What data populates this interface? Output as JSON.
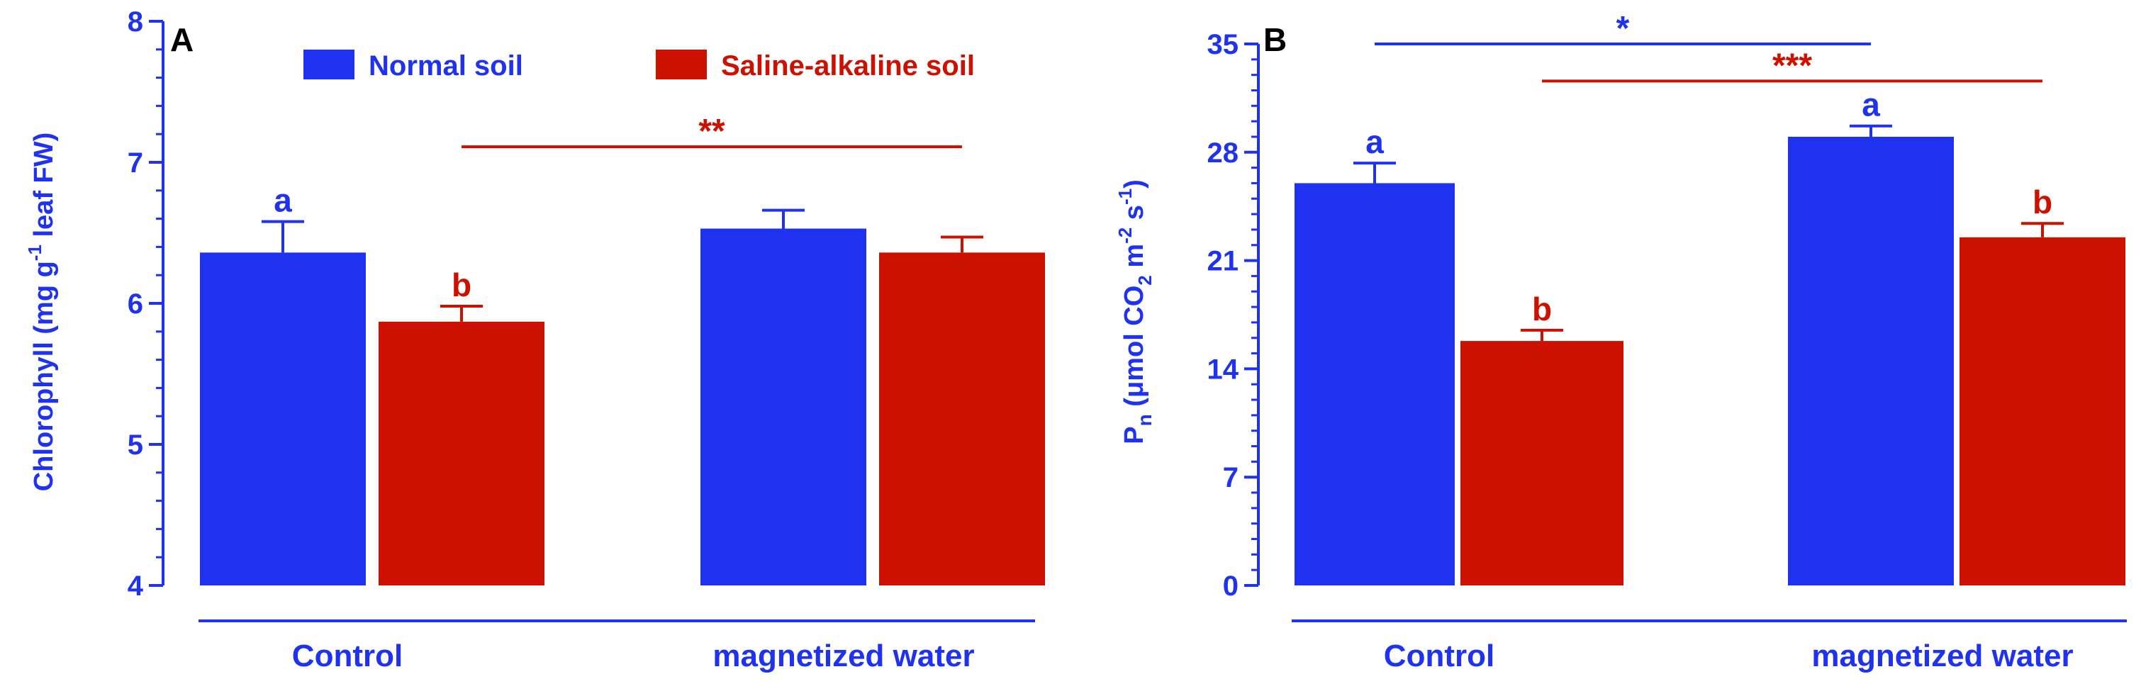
{
  "colors": {
    "normal": "#1e32f0",
    "saline": "#cc1100",
    "blue_text": "#1e32f0",
    "red_text": "#cc1100",
    "label_black": "#000000"
  },
  "legend": {
    "items": [
      "Normal soil",
      "Saline-alkaline soil"
    ]
  },
  "chart_data": [
    {
      "type": "bar",
      "panel_label": "A",
      "categories": [
        "Control",
        "magnetized water"
      ],
      "ylabel": "Chlorophyll (mg g-1 leaf FW)",
      "ylabel_parts": {
        "main": "Chlorophyll (mg g",
        "sup": "-1",
        "tail": " leaf FW)"
      },
      "ylim": [
        4,
        8
      ],
      "yticks": [
        "4",
        "5",
        "6",
        "7",
        "8"
      ],
      "minor_ticks_per_major": 5,
      "series": [
        {
          "name": "Normal soil",
          "values": [
            6.36,
            6.53
          ],
          "errors": [
            0.22,
            0.13
          ],
          "letters": [
            "a",
            ""
          ]
        },
        {
          "name": "Saline-alkaline soil",
          "values": [
            5.87,
            6.36
          ],
          "errors": [
            0.11,
            0.11
          ],
          "letters": [
            "b",
            ""
          ]
        }
      ],
      "significance": [
        {
          "label": "**",
          "y": 7.11,
          "from": [
            1,
            0
          ],
          "to": [
            1,
            1
          ],
          "series_color": "saline"
        }
      ]
    },
    {
      "type": "bar",
      "panel_label": "B",
      "categories": [
        "Control",
        "magnetized water"
      ],
      "ylabel": "Pn (μmol CO2 m-2 s-1)",
      "ylabel_parts": {
        "p": "P",
        "n": "n",
        "mid": " (μmol CO",
        "sub2": "2",
        "m": " m",
        "supm": "-2",
        "s": " s",
        "sups": "-1",
        "close": ")"
      },
      "ylim": [
        0,
        35
      ],
      "yticks": [
        "0",
        "7",
        "14",
        "21",
        "28",
        "35"
      ],
      "minor_ticks_per_major": 7,
      "series": [
        {
          "name": "Normal soil",
          "values": [
            26.0,
            29.0
          ],
          "errors": [
            1.3,
            0.7
          ],
          "letters": [
            "a",
            "a"
          ]
        },
        {
          "name": "Saline-alkaline soil",
          "values": [
            15.8,
            22.5
          ],
          "errors": [
            0.7,
            0.9
          ],
          "letters": [
            "b",
            "b"
          ]
        }
      ],
      "significance": [
        {
          "label": "*",
          "y": 35.0,
          "from": [
            0,
            0
          ],
          "to": [
            0,
            1
          ],
          "series_color": "normal"
        },
        {
          "label": "***",
          "y": 32.6,
          "from": [
            1,
            0
          ],
          "to": [
            1,
            1
          ],
          "series_color": "saline"
        }
      ]
    }
  ]
}
